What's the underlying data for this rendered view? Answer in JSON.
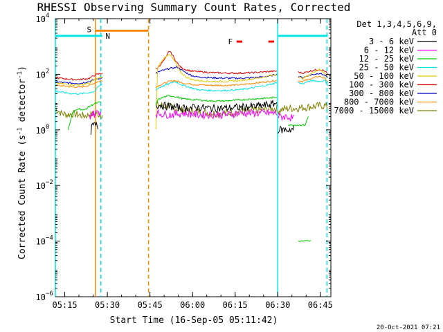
{
  "chart_data": {
    "type": "line",
    "title": "RHESSI Observing Summary Count Rates, Corrected",
    "xlabel": "Start Time (16-Sep-05 05:11:42)",
    "ylabel": "Corrected Count Rate (s⁻¹ detector⁻¹)",
    "ylabel_main": "Corrected Count Rate (s",
    "ylabel_mid": " detector",
    "ylabel_end": ")",
    "yscale": "log",
    "ylim": [
      1e-06,
      10000
    ],
    "xlim_minutes": [
      0,
      97
    ],
    "x_ticks": [
      {
        "minute": 3.3,
        "label": "05:15"
      },
      {
        "minute": 18.3,
        "label": "05:30"
      },
      {
        "minute": 33.3,
        "label": "05:45"
      },
      {
        "minute": 48.3,
        "label": "06:00"
      },
      {
        "minute": 63.3,
        "label": "06:15"
      },
      {
        "minute": 78.3,
        "label": "06:30"
      },
      {
        "minute": 93.3,
        "label": "06:45"
      }
    ],
    "y_ticks": [
      {
        "exp": -6,
        "label": "10",
        "sup": "−6"
      },
      {
        "exp": -4,
        "label": "10",
        "sup": "−4"
      },
      {
        "exp": -2,
        "label": "10",
        "sup": "−2"
      },
      {
        "exp": 0,
        "label": "10",
        "sup": "0"
      },
      {
        "exp": 2,
        "label": "10",
        "sup": "2"
      },
      {
        "exp": 4,
        "label": "10",
        "sup": "4"
      }
    ],
    "legend": {
      "header1": "Det 1,3,4,5,6,9,",
      "header2": "Att 0",
      "placement": "outside-right",
      "entries": [
        {
          "label": "3 - 6 keV",
          "color": "#000000"
        },
        {
          "label": "6 - 12 keV",
          "color": "#ff00ff"
        },
        {
          "label": "12 - 25 keV",
          "color": "#00cc00"
        },
        {
          "label": "25 - 50 keV",
          "color": "#00e5e5"
        },
        {
          "label": "50 - 100 keV",
          "color": "#e5c800"
        },
        {
          "label": "100 - 300 keV",
          "color": "#e00000"
        },
        {
          "label": "300 - 800 keV",
          "color": "#0000cc"
        },
        {
          "label": "800 - 7000 keV",
          "color": "#ff8800"
        },
        {
          "label": "7000 - 15000 keV",
          "color": "#808000"
        }
      ]
    },
    "segments": [
      {
        "start": 0,
        "end": 16.6
      },
      {
        "start": 35.4,
        "end": 78.3
      },
      {
        "start": 85.5,
        "end": 95.9
      }
    ],
    "series": [
      {
        "name": "3 - 6 keV",
        "color": "#000000",
        "segments": [
          {
            "x": [
              12.5,
              13,
              14,
              15
            ],
            "y": [
              0.9,
              1.4,
              1.5,
              1.3
            ]
          },
          {
            "x": [
              35.4,
              40,
              45,
              50,
              55,
              60,
              65,
              70,
              75,
              78
            ],
            "y": [
              8,
              7,
              6,
              6.5,
              6,
              6,
              6.5,
              7,
              8,
              9
            ]
          },
          {
            "x": [
              78.3,
              80,
              82,
              84
            ],
            "y": [
              1.0,
              1.0,
              1.0,
              1.1
            ]
          }
        ]
      },
      {
        "name": "6 - 12 keV",
        "color": "#ff00ff",
        "segments": [
          {
            "x": [
              12,
              13,
              14,
              15,
              16
            ],
            "y": [
              3,
              4,
              3.5,
              5,
              4
            ]
          },
          {
            "x": [
              35.4,
              40,
              45,
              50,
              55,
              60,
              65,
              70,
              75,
              78
            ],
            "y": [
              4,
              3.5,
              4,
              3.5,
              3.5,
              3.5,
              4,
              4,
              4,
              4
            ]
          },
          {
            "x": [
              78.3,
              80,
              82,
              84
            ],
            "y": [
              3,
              3,
              3,
              2.5
            ]
          }
        ]
      },
      {
        "name": "12 - 25 keV",
        "color": "#00cc00",
        "segments": [
          {
            "x": [
              4.5,
              6,
              8,
              10,
              12,
              14,
              16
            ],
            "y": [
              1.0,
              4,
              6,
              5,
              7,
              9,
              10
            ]
          },
          {
            "x": [
              35.4,
              36,
              38,
              40,
              42,
              45,
              50,
              55,
              60,
              65,
              70,
              75,
              78
            ],
            "y": [
              8,
              12,
              15,
              17,
              16,
              13,
              12,
              11,
              11,
              12,
              13,
              14,
              15
            ]
          },
          {
            "x": [
              82,
              84,
              86,
              88,
              89
            ],
            "y": [
              1.5,
              1.5,
              1.5,
              1.5,
              3
            ]
          },
          {
            "x": [
              85.5,
              86,
              87,
              88,
              89,
              90
            ],
            "y": [
              0.0001,
              0.0001,
              0.0001,
              0.0001,
              0.0001,
              0.0001
            ]
          }
        ]
      },
      {
        "name": "25 - 50 keV",
        "color": "#00e5e5",
        "segments": [
          {
            "x": [
              0,
              3,
              6,
              9,
              12,
              14,
              15,
              16.6
            ],
            "y": [
              25,
              22,
              20,
              20,
              22,
              25,
              35,
              45
            ]
          },
          {
            "x": [
              35.4,
              37,
              40,
              42,
              45,
              50,
              55,
              60,
              65,
              70,
              75,
              78
            ],
            "y": [
              28,
              35,
              45,
              55,
              40,
              28,
              26,
              26,
              28,
              33,
              42,
              50
            ]
          },
          {
            "x": [
              85.5,
              87,
              89,
              91,
              93,
              95,
              95.9
            ],
            "y": [
              50,
              45,
              55,
              60,
              55,
              60,
              40
            ]
          }
        ]
      },
      {
        "name": "50 - 100 keV",
        "color": "#e5c800",
        "segments": [
          {
            "x": [
              0,
              3,
              6,
              9,
              12,
              14,
              16.6
            ],
            "y": [
              48,
              45,
              42,
              42,
              48,
              65,
              80
            ]
          },
          {
            "x": [
              35.4,
              36,
              38,
              40,
              42,
              44,
              46,
              48,
              50,
              55,
              60,
              65,
              70,
              75,
              78
            ],
            "y": [
              1,
              180,
              350,
              550,
              300,
              120,
              80,
              65,
              60,
              55,
              55,
              60,
              70,
              85,
              100
            ]
          },
          {
            "x": [
              85.5,
              87,
              89,
              91,
              93,
              95,
              95.9
            ],
            "y": [
              80,
              70,
              90,
              120,
              150,
              110,
              80
            ]
          }
        ]
      },
      {
        "name": "100 - 300 keV",
        "color": "#e00000",
        "segments": [
          {
            "x": [
              0,
              3,
              6,
              9,
              12,
              14,
              16.6
            ],
            "y": [
              75,
              70,
              65,
              65,
              72,
              95,
              110
            ]
          },
          {
            "x": [
              35.4,
              37,
              39,
              40,
              41,
              42,
              43,
              44,
              46,
              48,
              50,
              55,
              60,
              65,
              70,
              75,
              78
            ],
            "y": [
              150,
              220,
              400,
              700,
              550,
              350,
              250,
              180,
              145,
              130,
              125,
              115,
              110,
              110,
              115,
              125,
              130
            ]
          },
          {
            "x": [
              85.5,
              87,
              89,
              91,
              93,
              95,
              95.9
            ],
            "y": [
              120,
              110,
              125,
              140,
              150,
              130,
              100
            ]
          }
        ]
      },
      {
        "name": "300 - 800 keV",
        "color": "#0000cc",
        "segments": [
          {
            "x": [
              0,
              3,
              6,
              9,
              12,
              14,
              16.6
            ],
            "y": [
              55,
              50,
              48,
              48,
              55,
              65,
              75
            ]
          },
          {
            "x": [
              35.4,
              37,
              40,
              43,
              45,
              48,
              50,
              55,
              60,
              65,
              70,
              75,
              78
            ],
            "y": [
              110,
              130,
              160,
              180,
              130,
              90,
              80,
              75,
              72,
              72,
              75,
              85,
              100
            ]
          },
          {
            "x": [
              85.5,
              87,
              89,
              91,
              93,
              95,
              95.9
            ],
            "y": [
              85,
              75,
              90,
              100,
              110,
              90,
              75
            ]
          }
        ]
      },
      {
        "name": "800 - 7000 keV",
        "color": "#ff8800",
        "segments": [
          {
            "x": [
              0,
              3,
              6,
              9,
              12,
              14,
              16.6
            ],
            "y": [
              40,
              38,
              35,
              35,
              40,
              50,
              60
            ]
          },
          {
            "x": [
              35.4,
              37,
              40,
              42,
              45,
              50,
              55,
              60,
              65,
              70,
              75,
              78
            ],
            "y": [
              35,
              42,
              55,
              60,
              48,
              42,
              40,
              40,
              42,
              48,
              55,
              60
            ]
          },
          {
            "x": [
              85.5,
              87,
              89,
              91,
              93,
              95,
              95.9
            ],
            "y": [
              60,
              55,
              65,
              75,
              85,
              70,
              55
            ]
          }
        ]
      },
      {
        "name": "7000 - 15000 keV",
        "color": "#808000",
        "segments": [
          {
            "x": [
              0,
              2,
              4,
              6,
              8,
              10,
              12,
              14,
              16.6
            ],
            "y": [
              6,
              4,
              3.5,
              3.8,
              3.5,
              3.2,
              3.5,
              3.8,
              3.5
            ]
          },
          {
            "x": [
              35.4,
              38,
              40,
              45,
              50,
              55,
              60,
              65,
              70,
              75,
              78
            ],
            "y": [
              8,
              7.5,
              7,
              5,
              4.5,
              4,
              4,
              4.5,
              5,
              5.5,
              6
            ]
          },
          {
            "x": [
              78.3,
              80,
              82,
              85,
              88,
              91,
              94,
              95.9
            ],
            "y": [
              5,
              5.5,
              6,
              6,
              6.5,
              7,
              7.5,
              7
            ]
          }
        ]
      }
    ],
    "markers": {
      "saa": {
        "label": "S",
        "x_start": 14.1,
        "x_end": 32.8,
        "y": 3700,
        "color": "#ff8800"
      },
      "night": {
        "label": "N",
        "x_start": 0,
        "x_end": 16.5,
        "x_start2": 78.3,
        "x_end2": 95.9,
        "y": 2400,
        "color": "#00e5e5"
      },
      "flare": {
        "label": "F",
        "x_ranges": [
          [
            63.8,
            65.8
          ],
          [
            75.0,
            77.0
          ]
        ],
        "y": 1500,
        "color": "#ff0000"
      }
    },
    "vertical_lines": [
      {
        "minute": 14.1,
        "color": "#ff8800",
        "style": "solid"
      },
      {
        "minute": 16.0,
        "color": "#00e5e5",
        "style": "dashed"
      },
      {
        "minute": 32.8,
        "color": "#ff8800",
        "style": "dashed"
      },
      {
        "minute": 78.3,
        "color": "#00e5e5",
        "style": "solid"
      },
      {
        "minute": 95.6,
        "color": "#00e5e5",
        "style": "dashed"
      },
      {
        "minute": 0.0,
        "color": "#00e5e5",
        "style": "solid"
      }
    ],
    "timestamp": "20-Oct-2021 07:21"
  }
}
